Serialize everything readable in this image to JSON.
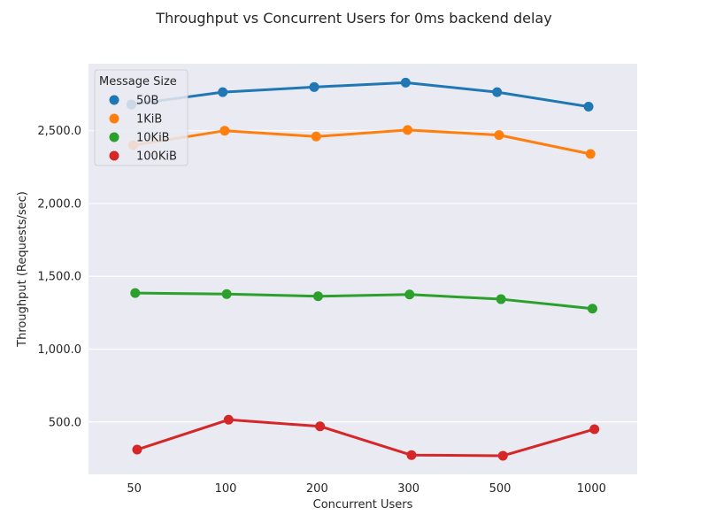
{
  "chart_data": {
    "type": "line",
    "title": "Throughput vs Concurrent Users for 0ms backend delay",
    "xlabel": "Concurrent Users",
    "ylabel": "Throughput (Requests/sec)",
    "categories": [
      "50",
      "100",
      "200",
      "300",
      "500",
      "1000"
    ],
    "ylim": [
      140,
      2960
    ],
    "yticks": [
      500,
      1000,
      1500,
      2000,
      2500
    ],
    "ytick_labels": [
      "500.0",
      "1,000.0",
      "1,500.0",
      "2,000.0",
      "2,500.0"
    ],
    "grid": true,
    "legend": {
      "title": "Message Size",
      "placement": "top-left"
    },
    "series": [
      {
        "name": "50B",
        "color": "#1f77b4",
        "values": [
          2680,
          2765,
          2800,
          2830,
          2765,
          2665
        ]
      },
      {
        "name": "1KiB",
        "color": "#ff7f0e",
        "values": [
          2400,
          2500,
          2460,
          2505,
          2470,
          2340
        ]
      },
      {
        "name": "10KiB",
        "color": "#2ca02c",
        "values": [
          1385,
          1378,
          1363,
          1375,
          1343,
          1278
        ]
      },
      {
        "name": "100KiB",
        "color": "#d62728",
        "values": [
          310,
          515,
          470,
          272,
          268,
          450
        ]
      }
    ]
  }
}
